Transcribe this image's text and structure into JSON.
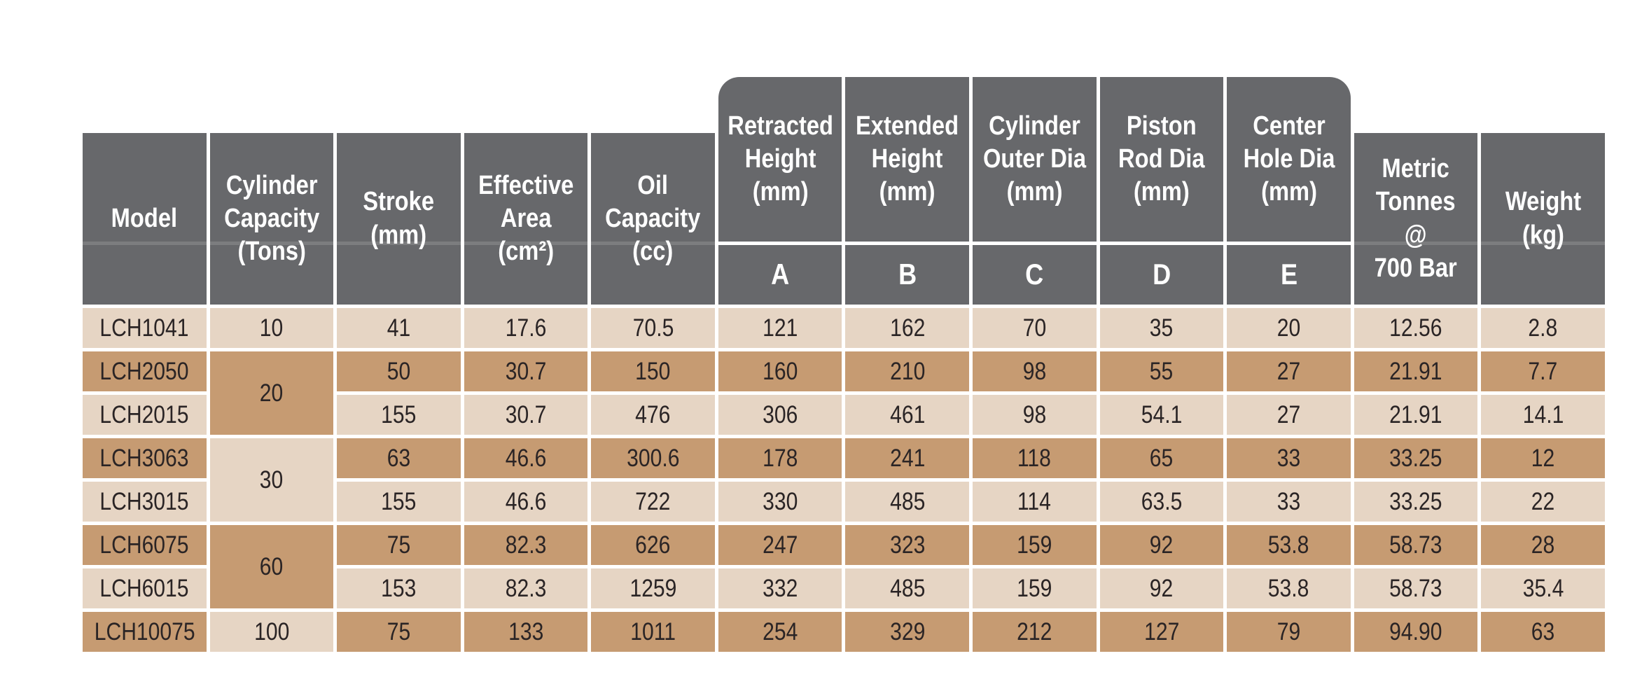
{
  "colors": {
    "header_bg": "#67686b",
    "row_light": "#e6d5c4",
    "row_dark": "#c69b72",
    "text": "#2a2425"
  },
  "table": {
    "headers": {
      "model": "Model",
      "capacity": "Cylinder\nCapacity\n(Tons)",
      "stroke": "Stroke\n(mm)",
      "area": "Effective\nArea\n(cm²)",
      "oil": "Oil\nCapacity\n(cc)",
      "retracted": "Retracted\nHeight\n(mm)",
      "extended": "Extended\nHeight\n(mm)",
      "cylinder_outer": "Cylinder\nOuter Dia\n(mm)",
      "piston_rod": "Piston\nRod Dia\n(mm)",
      "center_hole": "Center\nHole Dia\n(mm)",
      "metric_tonnes": "Metric\nTonnes\n@\n700 Bar",
      "weight": "Weight\n(kg)"
    },
    "sub_headers": {
      "a": "A",
      "b": "B",
      "c": "C",
      "d": "D",
      "e": "E"
    },
    "capacity_groups": [
      {
        "label": "10",
        "start": 0,
        "span": 1,
        "shade": "light"
      },
      {
        "label": "20",
        "start": 1,
        "span": 2,
        "shade": "dark"
      },
      {
        "label": "30",
        "start": 3,
        "span": 2,
        "shade": "light"
      },
      {
        "label": "60",
        "start": 5,
        "span": 2,
        "shade": "dark"
      },
      {
        "label": "100",
        "start": 7,
        "span": 1,
        "shade": "light"
      }
    ],
    "rows": [
      {
        "model": "LCH1041",
        "stroke": "41",
        "area": "17.6",
        "oil": "70.5",
        "a": "121",
        "b": "162",
        "c": "70",
        "d": "35",
        "e": "20",
        "tonnes": "12.56",
        "weight": "2.8"
      },
      {
        "model": "LCH2050",
        "stroke": "50",
        "area": "30.7",
        "oil": "150",
        "a": "160",
        "b": "210",
        "c": "98",
        "d": "55",
        "e": "27",
        "tonnes": "21.91",
        "weight": "7.7"
      },
      {
        "model": "LCH2015",
        "stroke": "155",
        "area": "30.7",
        "oil": "476",
        "a": "306",
        "b": "461",
        "c": "98",
        "d": "54.1",
        "e": "27",
        "tonnes": "21.91",
        "weight": "14.1"
      },
      {
        "model": "LCH3063",
        "stroke": "63",
        "area": "46.6",
        "oil": "300.6",
        "a": "178",
        "b": "241",
        "c": "118",
        "d": "65",
        "e": "33",
        "tonnes": "33.25",
        "weight": "12"
      },
      {
        "model": "LCH3015",
        "stroke": "155",
        "area": "46.6",
        "oil": "722",
        "a": "330",
        "b": "485",
        "c": "114",
        "d": "63.5",
        "e": "33",
        "tonnes": "33.25",
        "weight": "22"
      },
      {
        "model": "LCH6075",
        "stroke": "75",
        "area": "82.3",
        "oil": "626",
        "a": "247",
        "b": "323",
        "c": "159",
        "d": "92",
        "e": "53.8",
        "tonnes": "58.73",
        "weight": "28"
      },
      {
        "model": "LCH6015",
        "stroke": "153",
        "area": "82.3",
        "oil": "1259",
        "a": "332",
        "b": "485",
        "c": "159",
        "d": "92",
        "e": "53.8",
        "tonnes": "58.73",
        "weight": "35.4"
      },
      {
        "model": "LCH10075",
        "stroke": "75",
        "area": "133",
        "oil": "1011",
        "a": "254",
        "b": "329",
        "c": "212",
        "d": "127",
        "e": "79",
        "tonnes": "94.90",
        "weight": "63"
      }
    ]
  }
}
